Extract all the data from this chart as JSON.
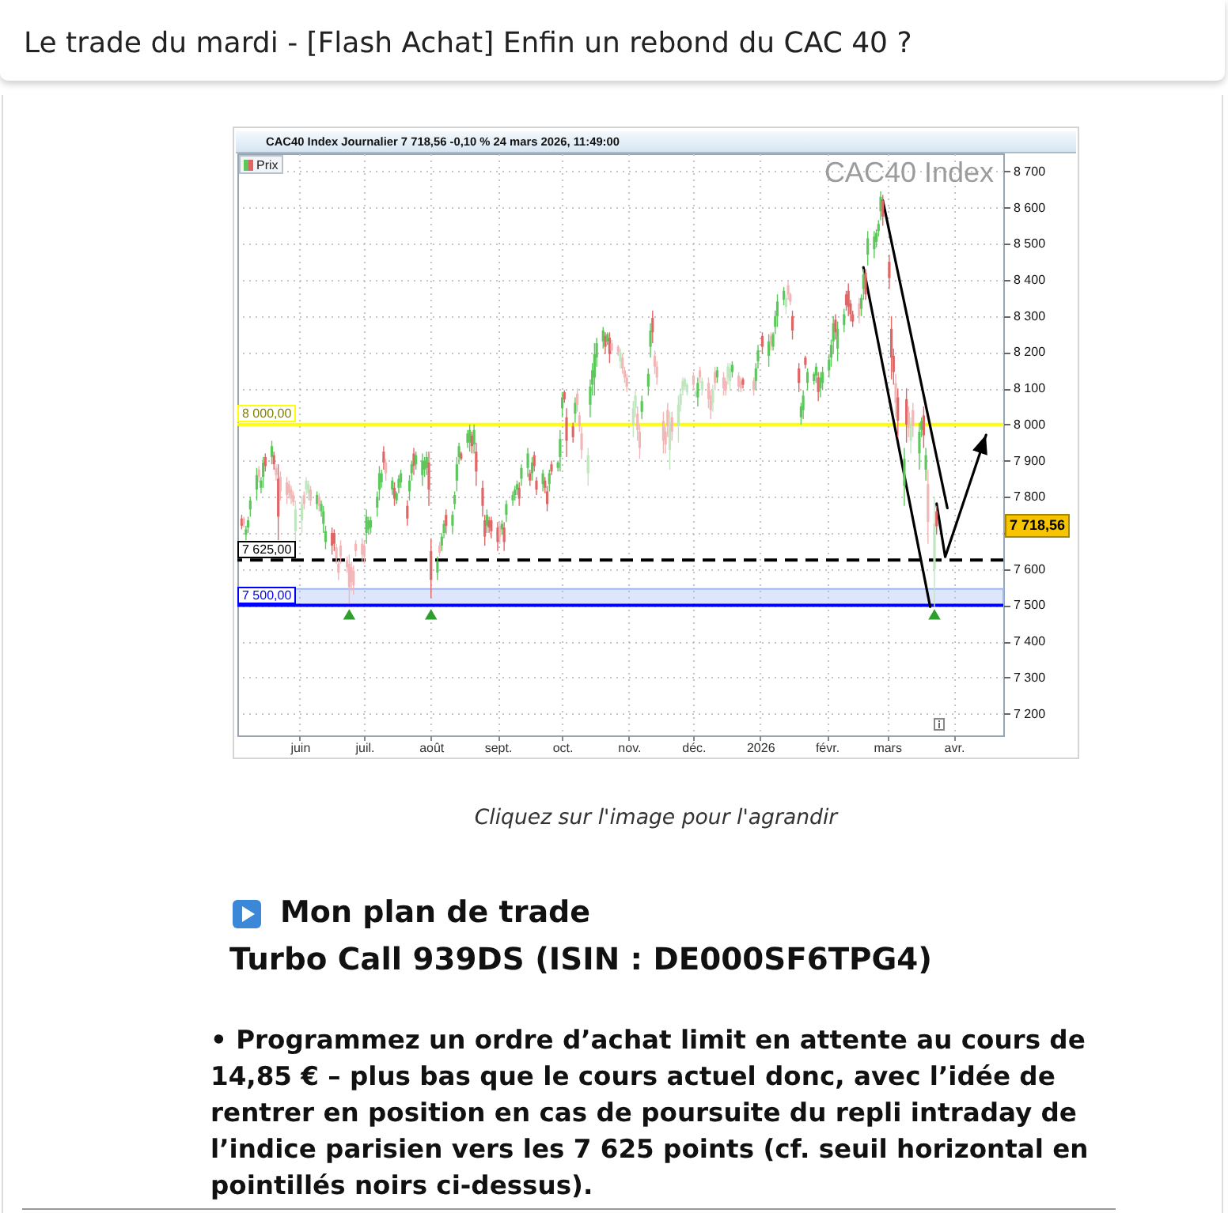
{
  "chart_data": {
    "type": "candlestick",
    "title": "Le trade du mardi - [Flash Achat] Enfin un rebond du CAC 40 ?",
    "subtitle": "CAC40 Index Journalier 7 718,56 -0,10 % 24 mars 2026, 11:49:00",
    "xlim": [
      "2025-05-03",
      "2026-04-24"
    ],
    "xticks": [
      {
        "value": "2025-06-01",
        "label": "juin"
      },
      {
        "value": "2025-07-01",
        "label": "juil."
      },
      {
        "value": "2025-08-01",
        "label": "août"
      },
      {
        "value": "2025-09-01",
        "label": "sept."
      },
      {
        "value": "2025-10-01",
        "label": "oct."
      },
      {
        "value": "2025-11-01",
        "label": "nov."
      },
      {
        "value": "2025-12-01",
        "label": "déc."
      },
      {
        "value": "2026-01-01",
        "label": "2026"
      },
      {
        "value": "2026-02-01",
        "label": "févr."
      },
      {
        "value": "2026-03-01",
        "label": "mars"
      },
      {
        "value": "2026-04-01",
        "label": "avr."
      }
    ],
    "ylim": [
      7140,
      8750
    ],
    "yticks": [
      {
        "value": 7200,
        "label": "7 200"
      },
      {
        "value": 7300,
        "label": "7 300"
      },
      {
        "value": 7400,
        "label": "7 400"
      },
      {
        "value": 7500,
        "label": "7 500"
      },
      {
        "value": 7600,
        "label": "7 600"
      },
      {
        "value": 7700,
        "label": null
      },
      {
        "value": 7800,
        "label": "7 800"
      },
      {
        "value": 7900,
        "label": "7 900"
      },
      {
        "value": 8000,
        "label": "8 000"
      },
      {
        "value": 8100,
        "label": "8 100"
      },
      {
        "value": 8200,
        "label": "8 200"
      },
      {
        "value": 8300,
        "label": "8 300"
      },
      {
        "value": 8400,
        "label": "8 400"
      },
      {
        "value": 8500,
        "label": "8 500"
      },
      {
        "value": 8600,
        "label": "8 600"
      },
      {
        "value": 8700,
        "label": "8 700"
      }
    ],
    "grid": true,
    "legend": "top left",
    "series": [
      {
        "name": "Prix",
        "type": "candlestick",
        "x": [
          "2025-05-05",
          "2025-05-06",
          "2025-05-07",
          "2025-05-08",
          "2025-05-09",
          "2025-05-12",
          "2025-05-13",
          "2025-05-14",
          "2025-05-15",
          "2025-05-16",
          "2025-05-19",
          "2025-05-20",
          "2025-05-21",
          "2025-05-22",
          "2025-05-23",
          "2025-05-26",
          "2025-05-27",
          "2025-05-28",
          "2025-05-29",
          "2025-05-30",
          "2025-06-02",
          "2025-06-03",
          "2025-06-04",
          "2025-06-05",
          "2025-06-06",
          "2025-06-09",
          "2025-06-10",
          "2025-06-11",
          "2025-06-12",
          "2025-06-13",
          "2025-06-16",
          "2025-06-17",
          "2025-06-18",
          "2025-06-19",
          "2025-06-20",
          "2025-06-23",
          "2025-06-24",
          "2025-06-25",
          "2025-06-26",
          "2025-06-27",
          "2025-06-30",
          "2025-07-01",
          "2025-07-02",
          "2025-07-03",
          "2025-07-04",
          "2025-07-07",
          "2025-07-08",
          "2025-07-09",
          "2025-07-10",
          "2025-07-11",
          "2025-07-14",
          "2025-07-15",
          "2025-07-16",
          "2025-07-17",
          "2025-07-18",
          "2025-07-21",
          "2025-07-22",
          "2025-07-23",
          "2025-07-24",
          "2025-07-25",
          "2025-07-28",
          "2025-07-29",
          "2025-07-30",
          "2025-07-31",
          "2025-08-01",
          "2025-08-04",
          "2025-08-05",
          "2025-08-06",
          "2025-08-07",
          "2025-08-08",
          "2025-08-11",
          "2025-08-12",
          "2025-08-13",
          "2025-08-14",
          "2025-08-15",
          "2025-08-18",
          "2025-08-19",
          "2025-08-20",
          "2025-08-21",
          "2025-08-22",
          "2025-08-25",
          "2025-08-26",
          "2025-08-27",
          "2025-08-28",
          "2025-08-29",
          "2025-09-01",
          "2025-09-02",
          "2025-09-03",
          "2025-09-04",
          "2025-09-05",
          "2025-09-08",
          "2025-09-09",
          "2025-09-10",
          "2025-09-11",
          "2025-09-12",
          "2025-09-15",
          "2025-09-16",
          "2025-09-17",
          "2025-09-18",
          "2025-09-19",
          "2025-09-22",
          "2025-09-23",
          "2025-09-24",
          "2025-09-25",
          "2025-09-26",
          "2025-09-29",
          "2025-09-30",
          "2025-10-01",
          "2025-10-02",
          "2025-10-03",
          "2025-10-06",
          "2025-10-07",
          "2025-10-08",
          "2025-10-09",
          "2025-10-10",
          "2025-10-13",
          "2025-10-14",
          "2025-10-15",
          "2025-10-16",
          "2025-10-17",
          "2025-10-20",
          "2025-10-21",
          "2025-10-22",
          "2025-10-23",
          "2025-10-24",
          "2025-10-27",
          "2025-10-28",
          "2025-10-29",
          "2025-10-30",
          "2025-10-31",
          "2025-11-03",
          "2025-11-04",
          "2025-11-05",
          "2025-11-06",
          "2025-11-07",
          "2025-11-10",
          "2025-11-11",
          "2025-11-12",
          "2025-11-13",
          "2025-11-14",
          "2025-11-17",
          "2025-11-18",
          "2025-11-19",
          "2025-11-20",
          "2025-11-21",
          "2025-11-24",
          "2025-11-25",
          "2025-11-26",
          "2025-11-27",
          "2025-11-28",
          "2025-12-01",
          "2025-12-02",
          "2025-12-03",
          "2025-12-04",
          "2025-12-05",
          "2025-12-08",
          "2025-12-09",
          "2025-12-10",
          "2025-12-11",
          "2025-12-12",
          "2025-12-15",
          "2025-12-16",
          "2025-12-17",
          "2025-12-18",
          "2025-12-19",
          "2025-12-22",
          "2025-12-23",
          "2025-12-24",
          "2025-12-29",
          "2025-12-30",
          "2025-12-31",
          "2026-01-02",
          "2026-01-05",
          "2026-01-06",
          "2026-01-07",
          "2026-01-08",
          "2026-01-09",
          "2026-01-12",
          "2026-01-13",
          "2026-01-14",
          "2026-01-15",
          "2026-01-16",
          "2026-01-19",
          "2026-01-20",
          "2026-01-21",
          "2026-01-22",
          "2026-01-23",
          "2026-01-26",
          "2026-01-27",
          "2026-01-28",
          "2026-01-29",
          "2026-01-30",
          "2026-02-02",
          "2026-02-03",
          "2026-02-04",
          "2026-02-05",
          "2026-02-06",
          "2026-02-09",
          "2026-02-10",
          "2026-02-11",
          "2026-02-12",
          "2026-02-13",
          "2026-02-16",
          "2026-02-17",
          "2026-02-18",
          "2026-02-19",
          "2026-02-20",
          "2026-02-23",
          "2026-02-24",
          "2026-02-25",
          "2026-02-26",
          "2026-02-27",
          "2026-03-02",
          "2026-03-03",
          "2026-03-04",
          "2026-03-05",
          "2026-03-06",
          "2026-03-09",
          "2026-03-10",
          "2026-03-11",
          "2026-03-12",
          "2026-03-13",
          "2026-03-16",
          "2026-03-17",
          "2026-03-18",
          "2026-03-19",
          "2026-03-20",
          "2026-03-23",
          "2026-03-24"
        ],
        "ohlc": [
          [
            7740,
            7750,
            7710,
            7720
          ],
          [
            7740,
            7745,
            7715,
            7725
          ],
          [
            7695,
            7720,
            7680,
            7710
          ],
          [
            7715,
            7745,
            7700,
            7735
          ],
          [
            7765,
            7800,
            7745,
            7790
          ],
          [
            7820,
            7880,
            7790,
            7860
          ],
          [
            7875,
            7885,
            7840,
            7855
          ],
          [
            7825,
            7855,
            7810,
            7845
          ],
          [
            7855,
            7910,
            7825,
            7895
          ],
          [
            7910,
            7920,
            7870,
            7885
          ],
          [
            7910,
            7955,
            7890,
            7940
          ],
          [
            7915,
            7925,
            7875,
            7890
          ],
          [
            7880,
            7890,
            7845,
            7860
          ],
          [
            7850,
            7890,
            7680,
            7745
          ],
          [
            7855,
            7870,
            7790,
            7815
          ],
          [
            7840,
            7855,
            7780,
            7805
          ],
          [
            7835,
            7845,
            7795,
            7810
          ],
          [
            7820,
            7830,
            7780,
            7795
          ],
          [
            7805,
            7815,
            7775,
            7785
          ],
          [
            7705,
            7790,
            7665,
            7765
          ],
          [
            7735,
            7800,
            7700,
            7780
          ],
          [
            7805,
            7815,
            7765,
            7780
          ],
          [
            7820,
            7855,
            7805,
            7845
          ],
          [
            7810,
            7845,
            7790,
            7835
          ],
          [
            7820,
            7830,
            7775,
            7790
          ],
          [
            7780,
            7815,
            7765,
            7805
          ],
          [
            7800,
            7810,
            7760,
            7775
          ],
          [
            7760,
            7790,
            7745,
            7780
          ],
          [
            7725,
            7775,
            7700,
            7760
          ],
          [
            7675,
            7720,
            7655,
            7705
          ],
          [
            7700,
            7715,
            7640,
            7665
          ],
          [
            7700,
            7710,
            7650,
            7670
          ],
          [
            7660,
            7670,
            7615,
            7630
          ],
          [
            7615,
            7625,
            7570,
            7590
          ],
          [
            7665,
            7680,
            7615,
            7635
          ],
          [
            7625,
            7635,
            7590,
            7605
          ],
          [
            7615,
            7640,
            7505,
            7550
          ],
          [
            7605,
            7620,
            7540,
            7565
          ],
          [
            7595,
            7610,
            7530,
            7555
          ],
          [
            7670,
            7680,
            7635,
            7650
          ],
          [
            7670,
            7685,
            7620,
            7640
          ],
          [
            7665,
            7680,
            7615,
            7635
          ],
          [
            7700,
            7765,
            7670,
            7745
          ],
          [
            7710,
            7745,
            7695,
            7735
          ],
          [
            7715,
            7745,
            7700,
            7735
          ],
          [
            7770,
            7815,
            7745,
            7800
          ],
          [
            7820,
            7885,
            7790,
            7865
          ],
          [
            7840,
            7875,
            7825,
            7865
          ],
          [
            7925,
            7940,
            7875,
            7895
          ],
          [
            7895,
            7905,
            7845,
            7865
          ],
          [
            7820,
            7855,
            7805,
            7845
          ],
          [
            7825,
            7840,
            7775,
            7795
          ],
          [
            7790,
            7815,
            7780,
            7810
          ],
          [
            7825,
            7860,
            7810,
            7850
          ],
          [
            7840,
            7875,
            7825,
            7865
          ],
          [
            7775,
            7790,
            7720,
            7740
          ],
          [
            7815,
            7860,
            7790,
            7845
          ],
          [
            7865,
            7900,
            7845,
            7890
          ],
          [
            7920,
            7935,
            7860,
            7885
          ],
          [
            7890,
            7925,
            7875,
            7915
          ],
          [
            7860,
            7920,
            7830,
            7900
          ],
          [
            7875,
            7910,
            7855,
            7900
          ],
          [
            7880,
            7925,
            7860,
            7910
          ],
          [
            7895,
            7925,
            7775,
            7820
          ],
          [
            7650,
            7685,
            7520,
            7570
          ],
          [
            7590,
            7635,
            7570,
            7620
          ],
          [
            7665,
            7675,
            7635,
            7645
          ],
          [
            7665,
            7700,
            7650,
            7690
          ],
          [
            7700,
            7735,
            7685,
            7725
          ],
          [
            7750,
            7765,
            7700,
            7720
          ],
          [
            7720,
            7760,
            7700,
            7750
          ],
          [
            7780,
            7815,
            7765,
            7805
          ],
          [
            7845,
            7910,
            7815,
            7890
          ],
          [
            7910,
            7950,
            7890,
            7940
          ],
          [
            7920,
            7925,
            7900,
            7905
          ],
          [
            7950,
            7985,
            7935,
            7975
          ],
          [
            7950,
            8000,
            7925,
            7985
          ],
          [
            7970,
            7980,
            7920,
            7940
          ],
          [
            7945,
            8000,
            7920,
            7985
          ],
          [
            7925,
            7950,
            7830,
            7870
          ],
          [
            7825,
            7845,
            7745,
            7775
          ],
          [
            7735,
            7750,
            7665,
            7690
          ],
          [
            7720,
            7765,
            7700,
            7750
          ],
          [
            7735,
            7745,
            7700,
            7715
          ],
          [
            7735,
            7745,
            7685,
            7705
          ],
          [
            7715,
            7730,
            7650,
            7675
          ],
          [
            7720,
            7730,
            7670,
            7690
          ],
          [
            7710,
            7735,
            7695,
            7725
          ],
          [
            7715,
            7730,
            7650,
            7675
          ],
          [
            7750,
            7790,
            7730,
            7780
          ],
          [
            7790,
            7815,
            7775,
            7805
          ],
          [
            7805,
            7830,
            7790,
            7820
          ],
          [
            7820,
            7845,
            7805,
            7835
          ],
          [
            7825,
            7840,
            7775,
            7795
          ],
          [
            7850,
            7890,
            7830,
            7880
          ],
          [
            7880,
            7935,
            7855,
            7920
          ],
          [
            7865,
            7875,
            7830,
            7845
          ],
          [
            7865,
            7910,
            7845,
            7895
          ],
          [
            7915,
            7925,
            7870,
            7885
          ],
          [
            7845,
            7855,
            7805,
            7820
          ],
          [
            7835,
            7875,
            7815,
            7865
          ],
          [
            7845,
            7855,
            7810,
            7825
          ],
          [
            7815,
            7830,
            7760,
            7780
          ],
          [
            7835,
            7875,
            7815,
            7865
          ],
          [
            7890,
            7900,
            7860,
            7870
          ],
          [
            7880,
            7900,
            7870,
            7895
          ],
          [
            7910,
            7985,
            7870,
            7960
          ],
          [
            8045,
            8090,
            8020,
            8075
          ],
          [
            8090,
            8095,
            8060,
            8070
          ],
          [
            8020,
            8045,
            7910,
            7955
          ],
          [
            7995,
            8005,
            7950,
            7965
          ],
          [
            8030,
            8075,
            8005,
            8060
          ],
          [
            8085,
            8100,
            8035,
            8055
          ],
          [
            8025,
            8035,
            7980,
            7995
          ],
          [
            7975,
            7995,
            7905,
            7930
          ],
          [
            7865,
            7935,
            7830,
            7915
          ],
          [
            8055,
            8125,
            8020,
            8105
          ],
          [
            8110,
            8170,
            8080,
            8150
          ],
          [
            8130,
            8225,
            8080,
            8195
          ],
          [
            8185,
            8240,
            8160,
            8225
          ],
          [
            8230,
            8270,
            8210,
            8260
          ],
          [
            8245,
            8255,
            8195,
            8215
          ],
          [
            8230,
            8255,
            8220,
            8250
          ],
          [
            8240,
            8255,
            8170,
            8195
          ],
          [
            8225,
            8235,
            8195,
            8205
          ],
          [
            8215,
            8220,
            8190,
            8200
          ],
          [
            8175,
            8210,
            8155,
            8200
          ],
          [
            8185,
            8195,
            8140,
            8155
          ],
          [
            8150,
            8160,
            8115,
            8130
          ],
          [
            8130,
            8140,
            8090,
            8105
          ],
          [
            8000,
            8065,
            7965,
            8045
          ],
          [
            8045,
            8095,
            8020,
            8080
          ],
          [
            8030,
            8050,
            7955,
            7985
          ],
          [
            7980,
            8000,
            7905,
            7935
          ],
          [
            8035,
            8080,
            8015,
            8065
          ],
          [
            8105,
            8155,
            8080,
            8140
          ],
          [
            8215,
            8280,
            8185,
            8260
          ],
          [
            8295,
            8315,
            8225,
            8255
          ],
          [
            8190,
            8205,
            8140,
            8160
          ],
          [
            8160,
            8175,
            8110,
            8130
          ],
          [
            8010,
            8035,
            7920,
            7955
          ],
          [
            7980,
            7995,
            7920,
            7945
          ],
          [
            8040,
            8060,
            7965,
            7995
          ],
          [
            7930,
            8035,
            7875,
            8005
          ],
          [
            8020,
            8035,
            7955,
            7980
          ],
          [
            7995,
            8080,
            7950,
            8055
          ],
          [
            8055,
            8100,
            8035,
            8085
          ],
          [
            8095,
            8130,
            8080,
            8120
          ],
          [
            8105,
            8130,
            8095,
            8125
          ],
          [
            8090,
            8115,
            8080,
            8110
          ],
          [
            8135,
            8145,
            8095,
            8110
          ],
          [
            8080,
            8095,
            8075,
            8090
          ],
          [
            8075,
            8130,
            8050,
            8115
          ],
          [
            8150,
            8160,
            8115,
            8130
          ],
          [
            8095,
            8130,
            8080,
            8120
          ],
          [
            8115,
            8130,
            8045,
            8070
          ],
          [
            8080,
            8095,
            8015,
            8040
          ],
          [
            8060,
            8110,
            8035,
            8095
          ],
          [
            8145,
            8160,
            8095,
            8115
          ],
          [
            8130,
            8160,
            8115,
            8150
          ],
          [
            8130,
            8145,
            8080,
            8100
          ],
          [
            8120,
            8130,
            8080,
            8095
          ],
          [
            8130,
            8170,
            8110,
            8160
          ],
          [
            8120,
            8170,
            8095,
            8155
          ],
          [
            8145,
            8175,
            8130,
            8165
          ],
          [
            8135,
            8145,
            8090,
            8105
          ],
          [
            8120,
            8130,
            8090,
            8100
          ],
          [
            8125,
            8130,
            8100,
            8110
          ],
          [
            8120,
            8130,
            8080,
            8095
          ],
          [
            8120,
            8170,
            8095,
            8155
          ],
          [
            8175,
            8220,
            8155,
            8205
          ],
          [
            8245,
            8255,
            8195,
            8215
          ],
          [
            8190,
            8250,
            8160,
            8230
          ],
          [
            8245,
            8255,
            8205,
            8220
          ],
          [
            8215,
            8255,
            8205,
            8250
          ],
          [
            8270,
            8315,
            8250,
            8300
          ],
          [
            8300,
            8360,
            8270,
            8340
          ],
          [
            8345,
            8380,
            8330,
            8370
          ],
          [
            8325,
            8360,
            8305,
            8350
          ],
          [
            8385,
            8395,
            8345,
            8360
          ],
          [
            8360,
            8365,
            8330,
            8340
          ],
          [
            8300,
            8315,
            8235,
            8260
          ],
          [
            8155,
            8170,
            8090,
            8115
          ],
          [
            8020,
            8060,
            8000,
            8050
          ],
          [
            8040,
            8095,
            8015,
            8080
          ],
          [
            8185,
            8190,
            8155,
            8165
          ],
          [
            8115,
            8155,
            8095,
            8145
          ],
          [
            8120,
            8145,
            8110,
            8140
          ],
          [
            8135,
            8170,
            8115,
            8160
          ],
          [
            8130,
            8145,
            8065,
            8090
          ],
          [
            8100,
            8145,
            8075,
            8130
          ],
          [
            8115,
            8160,
            8095,
            8145
          ],
          [
            8150,
            8195,
            8130,
            8180
          ],
          [
            8185,
            8235,
            8160,
            8220
          ],
          [
            8230,
            8300,
            8195,
            8280
          ],
          [
            8290,
            8305,
            8235,
            8255
          ],
          [
            8210,
            8285,
            8175,
            8265
          ],
          [
            8275,
            8320,
            8255,
            8305
          ],
          [
            8360,
            8370,
            8315,
            8330
          ],
          [
            8370,
            8390,
            8300,
            8325
          ],
          [
            8335,
            8345,
            8285,
            8305
          ],
          [
            8305,
            8315,
            8270,
            8285
          ],
          [
            8335,
            8350,
            8280,
            8300
          ],
          [
            8320,
            8360,
            8300,
            8350
          ],
          [
            8375,
            8430,
            8345,
            8415
          ],
          [
            8420,
            8430,
            8345,
            8360
          ],
          [
            8470,
            8535,
            8440,
            8515
          ],
          [
            8485,
            8535,
            8460,
            8520
          ],
          [
            8505,
            8540,
            8490,
            8530
          ],
          [
            8535,
            8565,
            8520,
            8555
          ],
          [
            8590,
            8645,
            8565,
            8630
          ],
          [
            8620,
            8635,
            8550,
            8575
          ],
          [
            8450,
            8470,
            8375,
            8405
          ],
          [
            8265,
            8300,
            8125,
            8185
          ],
          [
            8190,
            8210,
            8110,
            8145
          ],
          [
            8115,
            8140,
            8020,
            8060
          ],
          [
            8075,
            8100,
            7965,
            8010
          ],
          [
            7830,
            7935,
            7775,
            7905
          ],
          [
            8070,
            8100,
            7950,
            8000
          ],
          [
            8035,
            8050,
            7965,
            7990
          ],
          [
            7955,
            8020,
            7920,
            8000
          ],
          [
            8040,
            8060,
            7965,
            7995
          ],
          [
            7920,
            8005,
            7875,
            7980
          ],
          [
            7985,
            8020,
            7965,
            8010
          ],
          [
            8025,
            8050,
            7935,
            7970
          ],
          [
            7875,
            7935,
            7845,
            7915
          ],
          [
            7835,
            7875,
            7670,
            7730
          ],
          [
            7600,
            7800,
            7495,
            7726
          ],
          [
            7760,
            7775,
            7695,
            7718.56
          ]
        ],
        "colors": [
          "#e06666",
          "#f2b6b6",
          "#5cc85c",
          "#5cc85c",
          "#5cc85c",
          "#5cc85c",
          "#f2b6b6",
          "#5cc85c",
          "#5cc85c",
          "#e06666",
          "#5cc85c",
          "#e06666",
          "#f2b6b6",
          "#e06666",
          "#f2b6b6",
          "#f2b6b6",
          "#f2b6b6",
          "#f2b6b6",
          "#f2b6b6",
          "#bfe6bf",
          "#bfe6bf",
          "#f2b6b6",
          "#bfe6bf",
          "#bfe6bf",
          "#f2b6b6",
          "#5cc85c",
          "#f2b6b6",
          "#5cc85c",
          "#5cc85c",
          "#5cc85c",
          "#e06666",
          "#e06666",
          "#f2b6b6",
          "#f2b6b6",
          "#f2b6b6",
          "#f2b6b6",
          "#f2b6b6",
          "#f2b6b6",
          "#f2b6b6",
          "#f2b6b6",
          "#f2b6b6",
          "#f2b6b6",
          "#5cc85c",
          "#5cc85c",
          "#5cc85c",
          "#5cc85c",
          "#5cc85c",
          "#5cc85c",
          "#e06666",
          "#f2b6b6",
          "#5cc85c",
          "#e06666",
          "#5cc85c",
          "#5cc85c",
          "#5cc85c",
          "#e06666",
          "#5cc85c",
          "#5cc85c",
          "#e06666",
          "#5cc85c",
          "#5cc85c",
          "#5cc85c",
          "#5cc85c",
          "#e06666",
          "#e06666",
          "#5cc85c",
          "#f2b6b6",
          "#5cc85c",
          "#5cc85c",
          "#e06666",
          "#5cc85c",
          "#5cc85c",
          "#5cc85c",
          "#5cc85c",
          "#e06666",
          "#5cc85c",
          "#5cc85c",
          "#e06666",
          "#5cc85c",
          "#e06666",
          "#e06666",
          "#e06666",
          "#5cc85c",
          "#e06666",
          "#e06666",
          "#e06666",
          "#f2b6b6",
          "#5cc85c",
          "#e06666",
          "#5cc85c",
          "#5cc85c",
          "#5cc85c",
          "#5cc85c",
          "#e06666",
          "#5cc85c",
          "#5cc85c",
          "#e06666",
          "#5cc85c",
          "#e06666",
          "#e06666",
          "#5cc85c",
          "#e06666",
          "#e06666",
          "#5cc85c",
          "#e06666",
          "#5cc85c",
          "#5cc85c",
          "#5cc85c",
          "#e06666",
          "#e06666",
          "#e06666",
          "#5cc85c",
          "#f2b6b6",
          "#f2b6b6",
          "#f2b6b6",
          "#bfe6bf",
          "#5cc85c",
          "#5cc85c",
          "#5cc85c",
          "#5cc85c",
          "#5cc85c",
          "#e06666",
          "#5cc85c",
          "#e06666",
          "#f2b6b6",
          "#f2b6b6",
          "#bfe6bf",
          "#f2b6b6",
          "#f2b6b6",
          "#f2b6b6",
          "#bfe6bf",
          "#bfe6bf",
          "#f2b6b6",
          "#f2b6b6",
          "#5cc85c",
          "#5cc85c",
          "#5cc85c",
          "#e06666",
          "#f2b6b6",
          "#f2b6b6",
          "#f2b6b6",
          "#f2b6b6",
          "#f2b6b6",
          "#bfe6bf",
          "#f2b6b6",
          "#bfe6bf",
          "#bfe6bf",
          "#bfe6bf",
          "#bfe6bf",
          "#bfe6bf",
          "#f2b6b6",
          "#bfe6bf",
          "#5cc85c",
          "#f2b6b6",
          "#bfe6bf",
          "#f2b6b6",
          "#f2b6b6",
          "#bfe6bf",
          "#f2b6b6",
          "#5cc85c",
          "#f2b6b6",
          "#f2b6b6",
          "#bfe6bf",
          "#bfe6bf",
          "#5cc85c",
          "#f2b6b6",
          "#f2b6b6",
          "#e06666",
          "#f2b6b6",
          "#5cc85c",
          "#5cc85c",
          "#e06666",
          "#5cc85c",
          "#f2b6b6",
          "#5cc85c",
          "#5cc85c",
          "#5cc85c",
          "#5cc85c",
          "#bfe6bf",
          "#f2b6b6",
          "#f2b6b6",
          "#e06666",
          "#e06666",
          "#5cc85c",
          "#5cc85c",
          "#e06666",
          "#5cc85c",
          "#5cc85c",
          "#5cc85c",
          "#e06666",
          "#5cc85c",
          "#5cc85c",
          "#5cc85c",
          "#5cc85c",
          "#5cc85c",
          "#e06666",
          "#5cc85c",
          "#5cc85c",
          "#e06666",
          "#e06666",
          "#e06666",
          "#e06666",
          "#f2b6b6",
          "#5cc85c",
          "#5cc85c",
          "#e06666",
          "#5cc85c",
          "#5cc85c",
          "#5cc85c",
          "#5cc85c",
          "#5cc85c",
          "#e06666",
          "#e06666",
          "#e06666",
          "#e06666",
          "#f2b6b6",
          "#e06666",
          "#5cc85c",
          "#e06666",
          "#f2b6b6",
          "#bfe6bf",
          "#f2b6b6",
          "#5cc85c",
          "#5cc85c",
          "#e06666",
          "#5cc85c",
          "#f2b6b6",
          "#bfe6bf",
          "#e06666"
        ]
      },
      {
        "type": "line",
        "x": [
          "2026-02-18",
          "2026-03-21"
        ],
        "values": [
          8435,
          7496
        ],
        "color": "#000000"
      },
      {
        "type": "line",
        "x": [
          "2026-02-27",
          "2026-03-29"
        ],
        "values": [
          8620,
          7769
        ],
        "color": "#000000"
      },
      {
        "type": "line",
        "x": [
          "2026-03-24",
          "2026-03-28",
          "2026-04-16"
        ],
        "values": [
          7781,
          7634,
          7971
        ],
        "color": "#000000"
      },
      {
        "type": "scatter",
        "x": [
          "2025-06-24",
          "2025-08-01",
          "2026-03-23"
        ],
        "values": [
          7475,
          7475,
          7475
        ],
        "color": "#2e9e2e",
        "marker": "triangle"
      }
    ],
    "ref_lines": [
      {
        "axis": "y",
        "value": 8000,
        "label": "8 000,00",
        "color": "#ffff00"
      },
      {
        "axis": "y",
        "value": 7625,
        "label": "7 625,00",
        "color": "#000000",
        "line_style": "dashed"
      },
      {
        "axis": "y",
        "value": 7500,
        "label": "7 500,00",
        "color": "#0000ff"
      }
    ],
    "bands": [
      {
        "axis": "y",
        "from": 7500,
        "to": 7545,
        "color": "#9db8f2"
      }
    ],
    "annotations": [
      "CAC40 Index",
      "7 718,56",
      "Cliquez sur l'image pour l'agrandir",
      "Mon plan de trade",
      "Turbo Call 939DS (ISIN : DE000SF6TPG4)",
      "• Programmez un ordre d’achat limit en attente au cours de 14,85 € – plus bas que le cours actuel donc, avec l’idée de rentrer en position en cas de poursuite du repli intraday de l’indice parisien vers les 7 625 points (cf. seuil horizontal en pointillés noirs ci-dessus)."
    ]
  }
}
